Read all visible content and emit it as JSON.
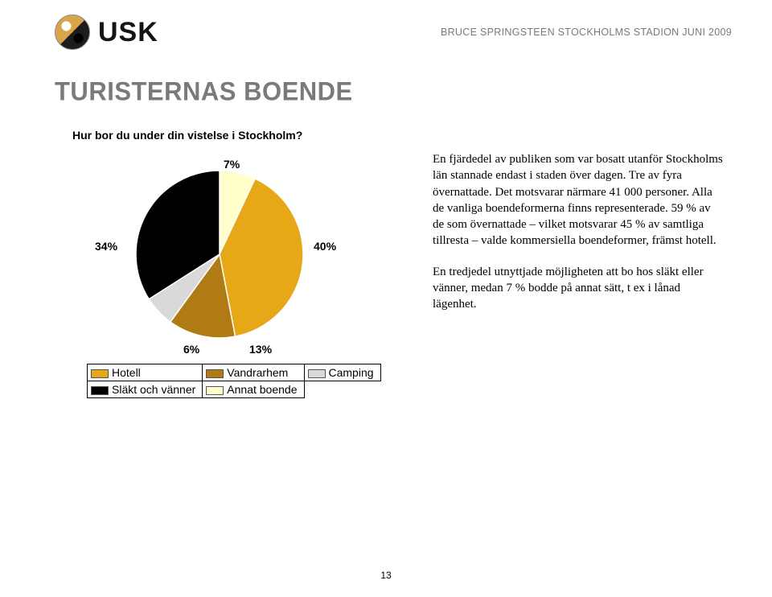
{
  "header": {
    "logo_text": "USK",
    "caption": "BRUCE SPRINGSTEEN STOCKHOLMS STADION JUNI 2009"
  },
  "title": "TURISTERNAS BOENDE",
  "chart": {
    "type": "pie",
    "title": "Hur bor du under din vistelse i Stockholm?",
    "slices": [
      {
        "label": "Hotell",
        "value": 40,
        "color": "#e6a817"
      },
      {
        "label": "Vandrarhem",
        "value": 13,
        "color": "#b07a14"
      },
      {
        "label": "Camping",
        "value": 6,
        "color": "#d9d9d9"
      },
      {
        "label": "Släkt och vänner",
        "value": 34,
        "color": "#000000"
      },
      {
        "label": "Annat boende",
        "value": 7,
        "color": "#ffffcc"
      }
    ],
    "label_texts": {
      "p40": "40%",
      "p13": "13%",
      "p6": "6%",
      "p34": "34%",
      "p7": "7%"
    },
    "label_fontsize": 14,
    "label_fontweight": "bold",
    "pie_radius": 104,
    "start_angle_deg": -90,
    "background_color": "#ffffff",
    "slice_border_color": "#ffffff",
    "slice_border_width": 1.5,
    "legend": {
      "position": "below",
      "border_color": "#000000",
      "cell_padding": 4,
      "swatch_width": 22,
      "swatch_height": 11
    }
  },
  "body": {
    "para1": "En fjärdedel av publiken som var bosatt utanför Stockholms län stannade endast i staden över dagen. Tre av fyra övernattade. Det motsvarar närmare 41 000 personer. Alla de vanliga boendeformerna finns representerade. 59 % av de som övernattade – vilket motsvarar 45 % av samtliga tillresta – valde kommersiella boendeformer, främst hotell.",
    "para2": "En tredjedel utnyttjade möjligheten att bo hos släkt eller vänner, medan 7 % bodde på annat sätt, t ex i lånad lägenhet."
  },
  "page_number": "13"
}
